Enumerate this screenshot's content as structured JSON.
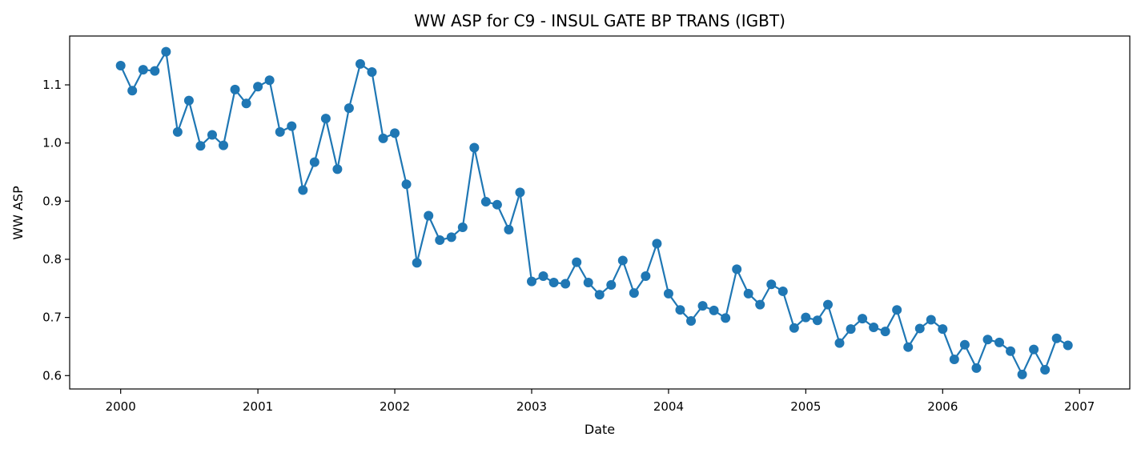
{
  "chart_data": {
    "type": "line",
    "title": "WW ASP for C9 - INSUL GATE BP TRANS (IGBT)",
    "xlabel": "Date",
    "ylabel": "WW ASP",
    "x_ticks": [
      "2000",
      "2001",
      "2002",
      "2003",
      "2004",
      "2005",
      "2006",
      "2007"
    ],
    "y_ticks": [
      "0.6",
      "0.7",
      "0.8",
      "0.9",
      "1.0",
      "1.1"
    ],
    "xlim": [
      "1999-08-18",
      "2007-05-15"
    ],
    "ylim": [
      0.577,
      1.184
    ],
    "grid": false,
    "color": "#1f77b4",
    "marker": "circle",
    "series": [
      {
        "x": [
          "2000-01",
          "2000-02",
          "2000-03",
          "2000-04",
          "2000-05",
          "2000-06",
          "2000-07",
          "2000-08",
          "2000-09",
          "2000-10",
          "2000-11",
          "2000-12",
          "2001-01",
          "2001-02",
          "2001-03",
          "2001-04",
          "2001-05",
          "2001-06",
          "2001-07",
          "2001-08",
          "2001-09",
          "2001-10",
          "2001-11",
          "2001-12",
          "2002-01",
          "2002-02",
          "2002-03",
          "2002-04",
          "2002-05",
          "2002-06",
          "2002-07",
          "2002-08",
          "2002-09",
          "2002-10",
          "2002-11",
          "2002-12",
          "2003-01",
          "2003-02",
          "2003-03",
          "2003-04",
          "2003-05",
          "2003-06",
          "2003-07",
          "2003-08",
          "2003-09",
          "2003-10",
          "2003-11",
          "2003-12",
          "2004-01",
          "2004-02",
          "2004-03",
          "2004-04",
          "2004-05",
          "2004-06",
          "2004-07",
          "2004-08",
          "2004-09",
          "2004-10",
          "2004-11",
          "2004-12",
          "2005-01",
          "2005-02",
          "2005-03",
          "2005-04",
          "2005-05",
          "2005-06",
          "2005-07",
          "2005-08",
          "2005-09",
          "2005-10",
          "2005-11",
          "2005-12",
          "2006-01",
          "2006-02",
          "2006-03",
          "2006-04",
          "2006-05",
          "2006-06",
          "2006-07",
          "2006-08",
          "2006-09",
          "2006-10",
          "2006-11",
          "2006-12"
        ],
        "values": [
          1.133,
          1.09,
          1.126,
          1.124,
          1.157,
          1.019,
          1.073,
          0.995,
          1.014,
          0.996,
          1.092,
          1.068,
          1.097,
          1.108,
          1.019,
          1.029,
          0.919,
          0.967,
          1.042,
          0.955,
          1.06,
          1.136,
          1.122,
          1.008,
          1.017,
          0.929,
          0.794,
          0.875,
          0.833,
          0.838,
          0.855,
          0.992,
          0.899,
          0.894,
          0.851,
          0.915,
          0.762,
          0.771,
          0.76,
          0.758,
          0.795,
          0.76,
          0.739,
          0.756,
          0.798,
          0.742,
          0.771,
          0.827,
          0.741,
          0.713,
          0.694,
          0.72,
          0.712,
          0.699,
          0.783,
          0.741,
          0.722,
          0.757,
          0.745,
          0.682,
          0.7,
          0.695,
          0.722,
          0.656,
          0.68,
          0.698,
          0.683,
          0.676,
          0.713,
          0.649,
          0.681,
          0.696,
          0.68,
          0.628,
          0.653,
          0.613,
          0.662,
          0.657,
          0.642,
          0.602,
          0.645,
          0.61,
          0.664,
          0.652
        ]
      }
    ]
  }
}
